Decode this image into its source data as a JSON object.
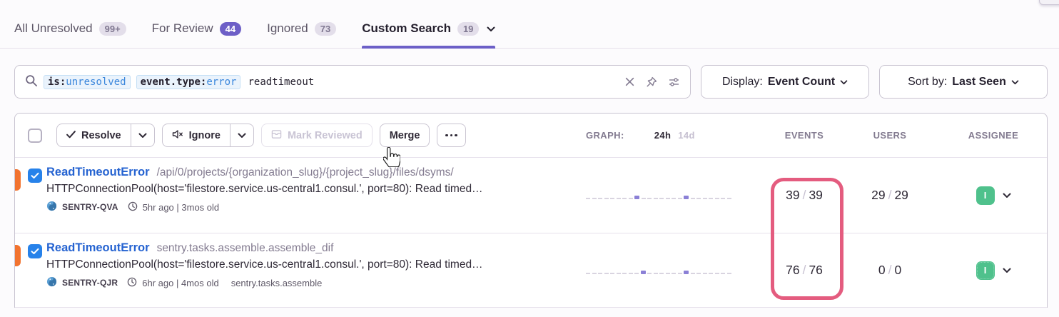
{
  "tabs": {
    "items": [
      {
        "label": "All Unresolved",
        "badge": "99+"
      },
      {
        "label": "For Review",
        "badge": "44"
      },
      {
        "label": "Ignored",
        "badge": "73"
      },
      {
        "label": "Custom Search",
        "badge": "19"
      }
    ]
  },
  "search": {
    "tokens": [
      {
        "key": "is:",
        "value": "unresolved"
      },
      {
        "key": "event.type:",
        "value": "error"
      }
    ],
    "free_text": "readtimeout"
  },
  "display": {
    "label": "Display:",
    "value": "Event Count"
  },
  "sort": {
    "label": "Sort by:",
    "value": "Last Seen"
  },
  "toolbar": {
    "resolve": "Resolve",
    "ignore": "Ignore",
    "mark_reviewed": "Mark Reviewed",
    "merge": "Merge"
  },
  "columns": {
    "graph": "GRAPH:",
    "range_24h": "24h",
    "range_14d": "14d",
    "events": "EVENTS",
    "users": "USERS",
    "assignee": "ASSIGNEE"
  },
  "misc": {
    "sep": "/"
  },
  "rows": [
    {
      "title": "ReadTimeoutError",
      "culprit": "/api/0/projects/{organization_slug}/{project_slug}/files/dsyms/",
      "message": "HTTPConnectionPool(host='filestore.service.us-central1.consul.', port=80): Read timed…",
      "project": "SENTRY-QVA",
      "age": "5hr ago | 3mos old",
      "extra": "",
      "events_current": "39",
      "events_total": "39",
      "users_current": "29",
      "users_total": "29",
      "assignee_initial": "I",
      "checked": true,
      "spark": [
        0,
        0,
        0,
        0,
        0,
        0,
        0,
        0,
        1,
        0,
        0,
        0,
        0,
        0,
        0,
        0,
        1,
        0,
        0,
        0,
        0,
        0,
        0,
        0
      ]
    },
    {
      "title": "ReadTimeoutError",
      "culprit": "sentry.tasks.assemble.assemble_dif",
      "message": "HTTPConnectionPool(host='filestore.service.us-central1.consul.', port=80): Read timed…",
      "project": "SENTRY-QJR",
      "age": "6hr ago | 4mos old",
      "extra": "sentry.tasks.assemble",
      "events_current": "76",
      "events_total": "76",
      "users_current": "0",
      "users_total": "0",
      "assignee_initial": "I",
      "checked": true,
      "spark": [
        0,
        0,
        0,
        0,
        0,
        0,
        0,
        0,
        0,
        1,
        0,
        0,
        0,
        0,
        0,
        0,
        1,
        0,
        0,
        0,
        0,
        0,
        0,
        0
      ]
    }
  ],
  "colors": {
    "accent_purple": "#6C5FC7",
    "annotation_pink": "#E45C7F",
    "level_orange": "#F2732F",
    "assignee_green": "#4FC18C",
    "link_blue": "#2563D1",
    "token_blue": "#3B87DC",
    "checkbox_blue": "#2782EA"
  },
  "icons": {
    "search-icon": "magnifier",
    "clear-icon": "x",
    "pin-icon": "thumbtack",
    "sliders-icon": "filter sliders",
    "check-icon": "checkmark",
    "mute-icon": "muted speaker",
    "archive-icon": "review box",
    "more-icon": "horizontal dots",
    "chevron-down-icon": "chevron down",
    "clock-icon": "clock",
    "platform-python-icon": "python logo",
    "hand-cursor-icon": "pointer hand"
  }
}
